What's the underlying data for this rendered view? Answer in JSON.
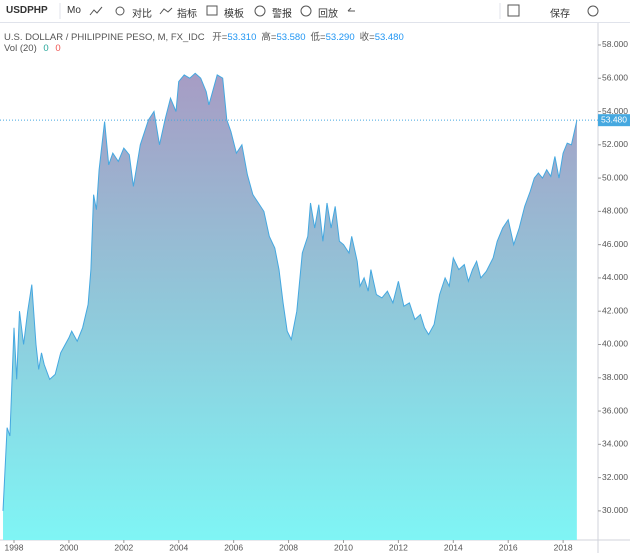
{
  "toolbar": {
    "symbol": "USDPHP",
    "interval": "Mo",
    "items": [
      "对比",
      "指标",
      "模板",
      "警报",
      "回放"
    ],
    "save": "保存"
  },
  "legend": {
    "title": "U.S. DOLLAR / PHILIPPINE PESO, M, FX_IDC",
    "ohlc": [
      {
        "label": "开=",
        "value": "53.310"
      },
      {
        "label": "高=",
        "value": "53.580"
      },
      {
        "label": "低=",
        "value": "53.290"
      },
      {
        "label": "收=",
        "value": "53.480"
      }
    ],
    "volume": {
      "label": "Vol (20)",
      "values": [
        "0",
        "0"
      ]
    }
  },
  "chart_data": {
    "type": "area",
    "x": [
      1997.6,
      1997.75,
      1997.85,
      1998.0,
      1998.1,
      1998.2,
      1998.35,
      1998.5,
      1998.65,
      1998.8,
      1998.9,
      1999.0,
      1999.1,
      1999.3,
      1999.5,
      1999.7,
      2000.0,
      2000.1,
      2000.3,
      2000.5,
      2000.7,
      2000.8,
      2000.9,
      2001.0,
      2001.1,
      2001.3,
      2001.45,
      2001.6,
      2001.8,
      2002.0,
      2002.2,
      2002.35,
      2002.6,
      2002.9,
      2003.1,
      2003.3,
      2003.5,
      2003.7,
      2003.9,
      2004.0,
      2004.2,
      2004.4,
      2004.6,
      2004.8,
      2005.0,
      2005.1,
      2005.2,
      2005.4,
      2005.6,
      2005.75,
      2005.9,
      2006.1,
      2006.3,
      2006.5,
      2006.7,
      2006.9,
      2007.1,
      2007.3,
      2007.5,
      2007.65,
      2007.8,
      2007.95,
      2008.1,
      2008.3,
      2008.5,
      2008.7,
      2008.8,
      2008.95,
      2009.1,
      2009.25,
      2009.4,
      2009.55,
      2009.7,
      2009.85,
      2010.0,
      2010.2,
      2010.3,
      2010.5,
      2010.6,
      2010.75,
      2010.9,
      2011.0,
      2011.2,
      2011.4,
      2011.6,
      2011.8,
      2012.0,
      2012.2,
      2012.4,
      2012.6,
      2012.8,
      2012.95,
      2013.1,
      2013.3,
      2013.5,
      2013.7,
      2013.85,
      2014.0,
      2014.2,
      2014.4,
      2014.55,
      2014.7,
      2014.85,
      2015.0,
      2015.2,
      2015.45,
      2015.6,
      2015.8,
      2016.0,
      2016.2,
      2016.4,
      2016.6,
      2016.8,
      2016.95,
      2017.1,
      2017.25,
      2017.4,
      2017.55,
      2017.7,
      2017.85,
      2018.0,
      2018.15,
      2018.3,
      2018.5
    ],
    "series": [
      {
        "name": "USDPHP",
        "color": "#45a8e0",
        "values": [
          30.0,
          35.0,
          34.5,
          41.0,
          37.9,
          42.0,
          40.0,
          42.0,
          43.6,
          40.0,
          38.5,
          39.5,
          38.8,
          37.9,
          38.2,
          39.5,
          40.4,
          40.8,
          40.2,
          41.0,
          42.4,
          44.5,
          49.0,
          48.1,
          50.5,
          53.4,
          50.8,
          51.5,
          51.0,
          51.8,
          51.4,
          49.5,
          52.0,
          53.5,
          54.0,
          52.0,
          53.5,
          54.8,
          54.0,
          55.8,
          56.2,
          56.0,
          56.3,
          56.0,
          55.2,
          54.4,
          55.0,
          56.2,
          56.0,
          53.5,
          52.8,
          51.5,
          52.0,
          50.2,
          49.0,
          48.5,
          48.0,
          46.5,
          45.8,
          44.5,
          42.5,
          40.8,
          40.3,
          42.0,
          45.5,
          46.5,
          48.5,
          47.0,
          48.4,
          46.2,
          48.5,
          47.0,
          48.3,
          46.2,
          46.0,
          45.5,
          46.5,
          45.0,
          43.5,
          44.0,
          43.2,
          44.5,
          43.0,
          42.8,
          43.2,
          42.5,
          43.8,
          42.3,
          42.5,
          41.5,
          41.8,
          41.0,
          40.6,
          41.2,
          43.0,
          44.0,
          43.5,
          45.2,
          44.5,
          44.8,
          43.8,
          44.5,
          45.0,
          44.0,
          44.4,
          45.2,
          46.2,
          47.0,
          47.5,
          46.0,
          47.0,
          48.3,
          49.2,
          50.0,
          50.3,
          50.0,
          50.5,
          50.1,
          51.3,
          50.0,
          51.5,
          52.1,
          52.0,
          53.48
        ]
      }
    ],
    "last_price": {
      "value": 53.48,
      "label": "53.480"
    },
    "xlim": [
      1997.49,
      2019.27
    ],
    "xticks": [
      1998,
      2000,
      2002,
      2004,
      2006,
      2008,
      2010,
      2012,
      2014,
      2016,
      2018
    ],
    "ylim": [
      28.25,
      59.2
    ],
    "yticks": [
      {
        "value": 30,
        "label": "30.000"
      },
      {
        "value": 32,
        "label": "32.000"
      },
      {
        "value": 34,
        "label": "34.000"
      },
      {
        "value": 36,
        "label": "36.000"
      },
      {
        "value": 38,
        "label": "38.000"
      },
      {
        "value": 40,
        "label": "40.000"
      },
      {
        "value": 42,
        "label": "42.000"
      },
      {
        "value": 44,
        "label": "44.000"
      },
      {
        "value": 46,
        "label": "46.000"
      },
      {
        "value": 48,
        "label": "48.000"
      },
      {
        "value": 50,
        "label": "50.000"
      },
      {
        "value": 52,
        "label": "52.000"
      },
      {
        "value": 54,
        "label": "54.000"
      },
      {
        "value": 56,
        "label": "56.000"
      },
      {
        "value": 58,
        "label": "58.000"
      }
    ]
  }
}
